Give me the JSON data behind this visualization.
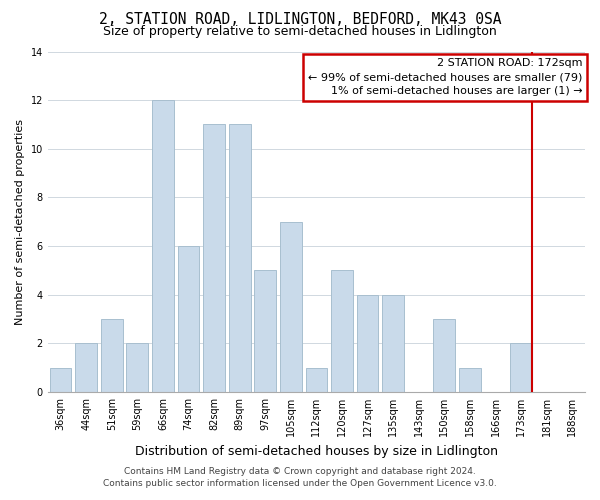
{
  "title": "2, STATION ROAD, LIDLINGTON, BEDFORD, MK43 0SA",
  "subtitle": "Size of property relative to semi-detached houses in Lidlington",
  "xlabel": "Distribution of semi-detached houses by size in Lidlington",
  "ylabel": "Number of semi-detached properties",
  "bar_labels": [
    "36sqm",
    "44sqm",
    "51sqm",
    "59sqm",
    "66sqm",
    "74sqm",
    "82sqm",
    "89sqm",
    "97sqm",
    "105sqm",
    "112sqm",
    "120sqm",
    "127sqm",
    "135sqm",
    "143sqm",
    "150sqm",
    "158sqm",
    "166sqm",
    "173sqm",
    "181sqm",
    "188sqm"
  ],
  "bar_values": [
    1,
    2,
    3,
    2,
    12,
    6,
    11,
    11,
    5,
    7,
    1,
    5,
    4,
    4,
    0,
    3,
    1,
    0,
    2,
    0,
    0
  ],
  "bar_color": "#c9daea",
  "bar_edge_color": "#a8bfcf",
  "annotation_title": "2 STATION ROAD: 172sqm",
  "annotation_line1": "← 99% of semi-detached houses are smaller (79)",
  "annotation_line2": "1% of semi-detached houses are larger (1) →",
  "annotation_box_edge_color": "#cc0000",
  "vline_color": "#cc0000",
  "ylim": [
    0,
    14
  ],
  "yticks": [
    0,
    2,
    4,
    6,
    8,
    10,
    12,
    14
  ],
  "footer1": "Contains HM Land Registry data © Crown copyright and database right 2024.",
  "footer2": "Contains public sector information licensed under the Open Government Licence v3.0.",
  "title_fontsize": 10.5,
  "subtitle_fontsize": 9,
  "xlabel_fontsize": 9,
  "ylabel_fontsize": 8,
  "tick_fontsize": 7,
  "annotation_fontsize": 8,
  "footer_fontsize": 6.5,
  "n_bars": 21,
  "vline_bar_index": 18
}
